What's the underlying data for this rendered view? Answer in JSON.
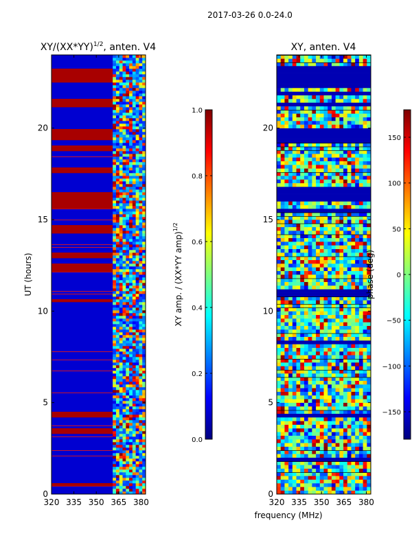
{
  "figure_title": "2017-03-26 0.0-24.0",
  "xlabel": "frequency (MHz)",
  "chart_data": [
    {
      "type": "heatmap",
      "title_main": "XY/(XX*YY)",
      "title_sup": "1/2",
      "title_tail": ", anten. V4",
      "xlabel": "",
      "ylabel": "UT (hours)",
      "xlim": [
        320,
        383
      ],
      "ylim": [
        0,
        24
      ],
      "xticks": [
        320,
        335,
        350,
        365,
        380
      ],
      "yticks": [
        0,
        5,
        10,
        15,
        20
      ],
      "colorbar": {
        "label_main": "XY amp. / (XX*YY amp)",
        "label_sup": "1/2",
        "range": [
          0.0,
          1.0
        ],
        "ticks": [
          "0.0",
          "0.2",
          "0.4",
          "0.6",
          "0.8",
          "1.0"
        ],
        "tick_values": [
          0.0,
          0.2,
          0.4,
          0.6,
          0.8,
          1.0
        ]
      },
      "data_sparse_above_mhz": 361,
      "high_value_bands_ut": [
        [
          22.6,
          23.1
        ],
        [
          21.2,
          21.5
        ],
        [
          19.4,
          19.9
        ],
        [
          18.8,
          19.0
        ],
        [
          17.6,
          17.8
        ],
        [
          15.7,
          16.5
        ],
        [
          14.3,
          14.6
        ],
        [
          12.9,
          13.2
        ],
        [
          12.2,
          12.6
        ],
        [
          10.5,
          10.6
        ],
        [
          4.2,
          4.5
        ],
        [
          3.3,
          3.5
        ],
        [
          0.5,
          0.6
        ]
      ],
      "colormap": "jet"
    },
    {
      "type": "heatmap",
      "title": "XY, anten. V4",
      "xlabel": "",
      "ylabel": "",
      "xlim": [
        320,
        383
      ],
      "ylim": [
        0,
        24
      ],
      "xticks": [
        320,
        335,
        350,
        365,
        380
      ],
      "yticks": [
        0,
        5,
        10,
        15,
        20
      ],
      "colorbar": {
        "label": "phase (deg)",
        "range": [
          -180,
          180
        ],
        "ticks": [
          "−150",
          "−100",
          "−50",
          "0",
          "50",
          "100",
          "150"
        ],
        "tick_values": [
          -150,
          -100,
          -50,
          0,
          50,
          100,
          150
        ]
      },
      "colormap": "jet"
    }
  ]
}
